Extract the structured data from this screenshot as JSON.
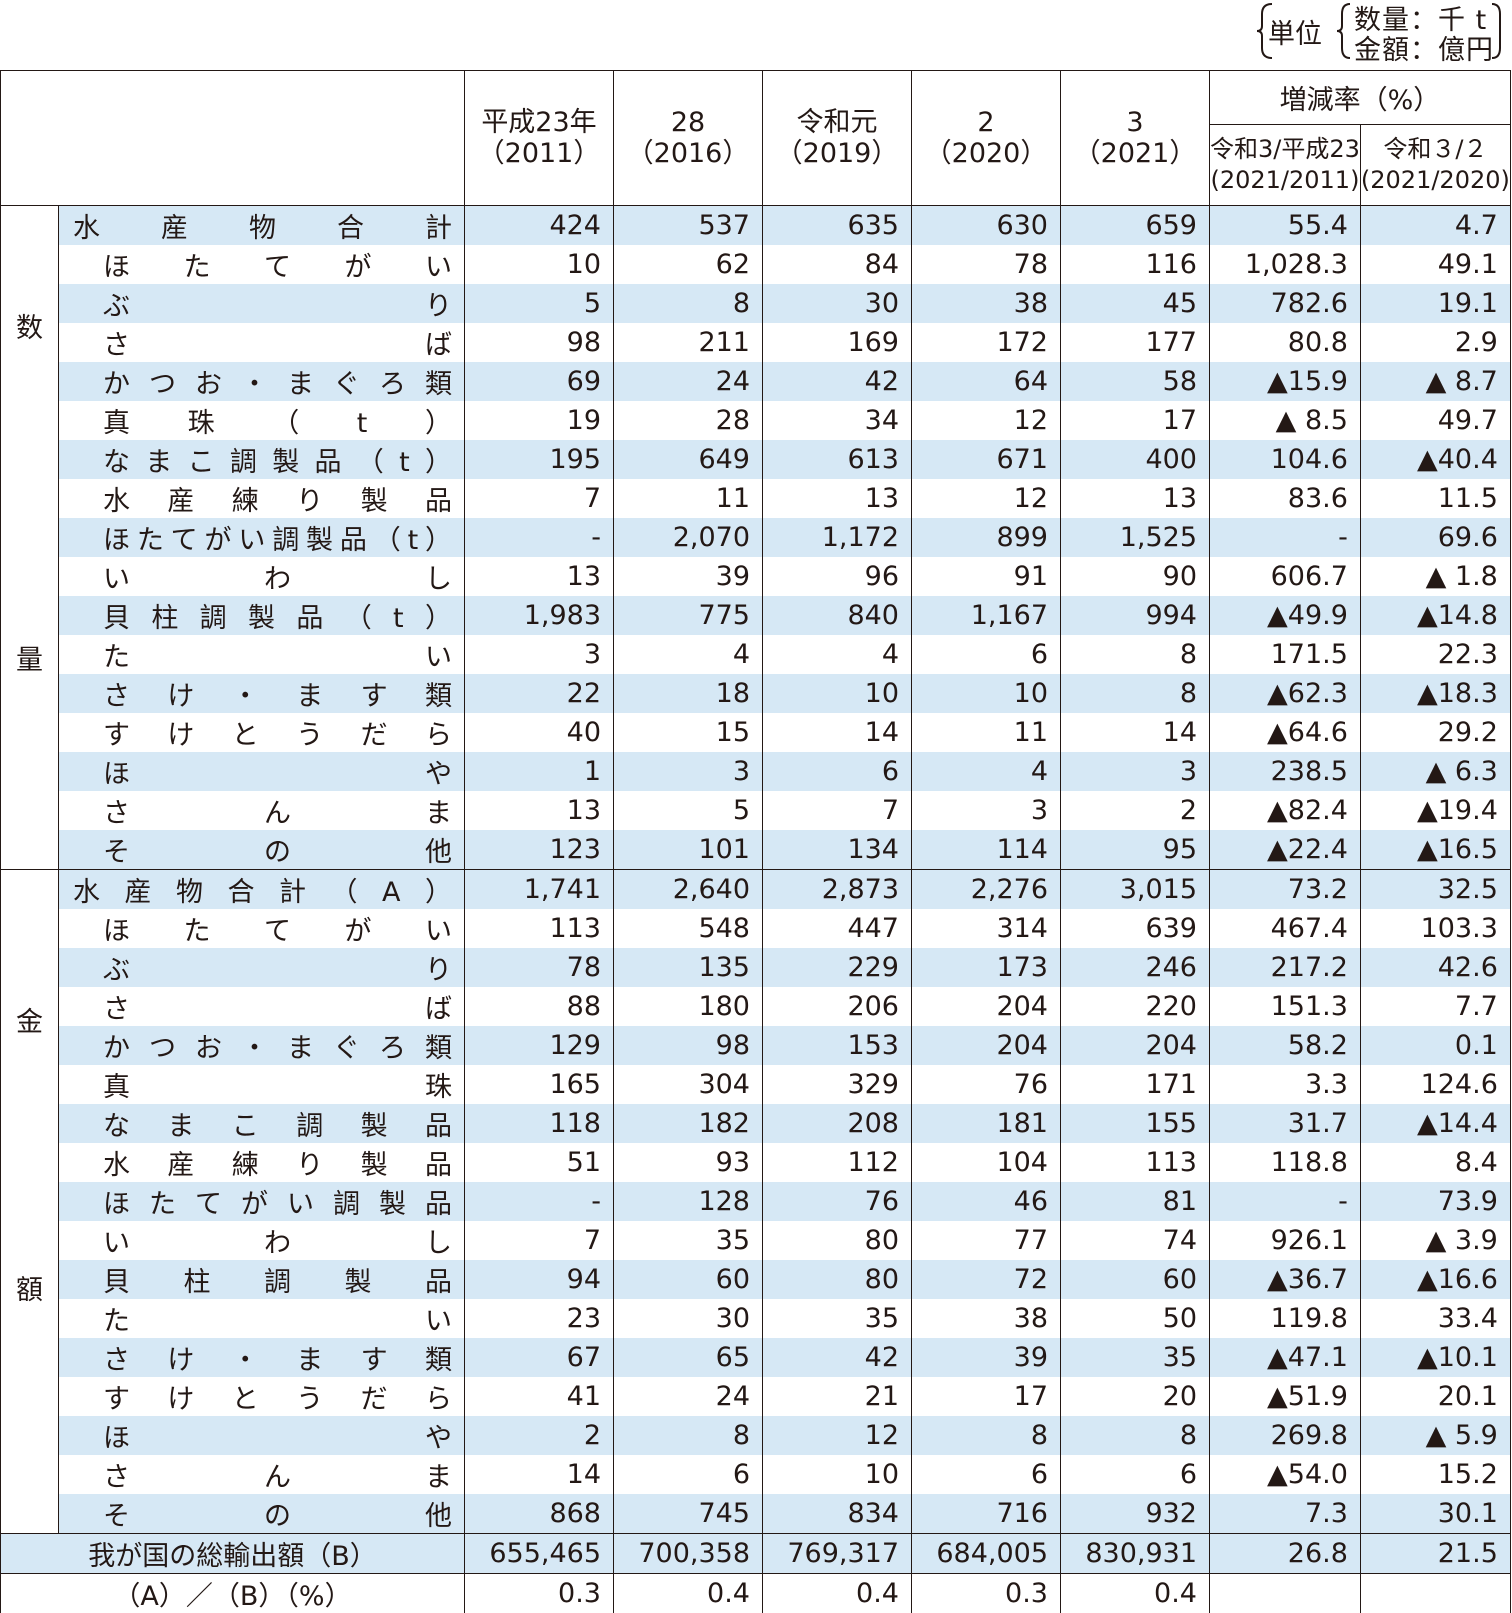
{
  "unit": {
    "label": "単位",
    "line1": "数量：千 t",
    "line2": "金額：億円"
  },
  "header": {
    "years": [
      {
        "top": "平成23年",
        "bottom": "（2011）"
      },
      {
        "top": "28",
        "bottom": "（2016）"
      },
      {
        "top": "令和元",
        "bottom": "（2019）"
      },
      {
        "top": "2",
        "bottom": "（2020）"
      },
      {
        "top": "3",
        "bottom": "（2021）"
      }
    ],
    "rate_title": "増減率（%）",
    "rate_cols": [
      {
        "top": "令和3/平成23",
        "bottom": "(2021/2011)"
      },
      {
        "top": "令和３/２",
        "bottom": "(2021/2020)"
      }
    ]
  },
  "sections": {
    "quantity_label_top": "数",
    "quantity_label_bottom": "量",
    "value_label_top": "金",
    "value_label_bottom": "額"
  },
  "quantity_rows": [
    {
      "name": "水産物合計",
      "v": [
        "424",
        "537",
        "635",
        "630",
        "659",
        "55.4",
        "4.7"
      ]
    },
    {
      "name": "ほたてがい",
      "v": [
        "10",
        "62",
        "84",
        "78",
        "116",
        "1,028.3",
        "49.1"
      ]
    },
    {
      "name": "ぶり",
      "v": [
        "5",
        "8",
        "30",
        "38",
        "45",
        "782.6",
        "19.1"
      ]
    },
    {
      "name": "さば",
      "v": [
        "98",
        "211",
        "169",
        "172",
        "177",
        "80.8",
        "2.9"
      ]
    },
    {
      "name": "かつお・まぐろ類",
      "v": [
        "69",
        "24",
        "42",
        "64",
        "58",
        "▲15.9",
        "▲ 8.7"
      ]
    },
    {
      "name": "真珠（t）",
      "v": [
        "19",
        "28",
        "34",
        "12",
        "17",
        "▲ 8.5",
        "49.7"
      ]
    },
    {
      "name": "なまこ調製品（t）",
      "v": [
        "195",
        "649",
        "613",
        "671",
        "400",
        "104.6",
        "▲40.4"
      ]
    },
    {
      "name": "水産練り製品",
      "v": [
        "7",
        "11",
        "13",
        "12",
        "13",
        "83.6",
        "11.5"
      ]
    },
    {
      "name": "ほたてがい調製品（t）",
      "v": [
        "-",
        "2,070",
        "1,172",
        "899",
        "1,525",
        "-",
        "69.6"
      ]
    },
    {
      "name": "いわし",
      "v": [
        "13",
        "39",
        "96",
        "91",
        "90",
        "606.7",
        "▲ 1.8"
      ]
    },
    {
      "name": "貝柱調製品（t）",
      "v": [
        "1,983",
        "775",
        "840",
        "1,167",
        "994",
        "▲49.9",
        "▲14.8"
      ]
    },
    {
      "name": "たい",
      "v": [
        "3",
        "4",
        "4",
        "6",
        "8",
        "171.5",
        "22.3"
      ]
    },
    {
      "name": "さけ・ます類",
      "v": [
        "22",
        "18",
        "10",
        "10",
        "8",
        "▲62.3",
        "▲18.3"
      ]
    },
    {
      "name": "すけとうだら",
      "v": [
        "40",
        "15",
        "14",
        "11",
        "14",
        "▲64.6",
        "29.2"
      ]
    },
    {
      "name": "ほや",
      "v": [
        "1",
        "3",
        "6",
        "4",
        "3",
        "238.5",
        "▲ 6.3"
      ]
    },
    {
      "name": "さんま",
      "v": [
        "13",
        "5",
        "7",
        "3",
        "2",
        "▲82.4",
        "▲19.4"
      ]
    },
    {
      "name": "その他",
      "v": [
        "123",
        "101",
        "134",
        "114",
        "95",
        "▲22.4",
        "▲16.5"
      ]
    }
  ],
  "value_rows": [
    {
      "name": "水産物合計（A）",
      "v": [
        "1,741",
        "2,640",
        "2,873",
        "2,276",
        "3,015",
        "73.2",
        "32.5"
      ]
    },
    {
      "name": "ほたてがい",
      "v": [
        "113",
        "548",
        "447",
        "314",
        "639",
        "467.4",
        "103.3"
      ]
    },
    {
      "name": "ぶり",
      "v": [
        "78",
        "135",
        "229",
        "173",
        "246",
        "217.2",
        "42.6"
      ]
    },
    {
      "name": "さば",
      "v": [
        "88",
        "180",
        "206",
        "204",
        "220",
        "151.3",
        "7.7"
      ]
    },
    {
      "name": "かつお・まぐろ類",
      "v": [
        "129",
        "98",
        "153",
        "204",
        "204",
        "58.2",
        "0.1"
      ]
    },
    {
      "name": "真珠",
      "v": [
        "165",
        "304",
        "329",
        "76",
        "171",
        "3.3",
        "124.6"
      ]
    },
    {
      "name": "なまこ調製品",
      "v": [
        "118",
        "182",
        "208",
        "181",
        "155",
        "31.7",
        "▲14.4"
      ]
    },
    {
      "name": "水産練り製品",
      "v": [
        "51",
        "93",
        "112",
        "104",
        "113",
        "118.8",
        "8.4"
      ]
    },
    {
      "name": "ほたてがい調製品",
      "v": [
        "-",
        "128",
        "76",
        "46",
        "81",
        "-",
        "73.9"
      ]
    },
    {
      "name": "いわし",
      "v": [
        "7",
        "35",
        "80",
        "77",
        "74",
        "926.1",
        "▲ 3.9"
      ]
    },
    {
      "name": "貝柱調製品",
      "v": [
        "94",
        "60",
        "80",
        "72",
        "60",
        "▲36.7",
        "▲16.6"
      ]
    },
    {
      "name": "たい",
      "v": [
        "23",
        "30",
        "35",
        "38",
        "50",
        "119.8",
        "33.4"
      ]
    },
    {
      "name": "さけ・ます類",
      "v": [
        "67",
        "65",
        "42",
        "39",
        "35",
        "▲47.1",
        "▲10.1"
      ]
    },
    {
      "name": "すけとうだら",
      "v": [
        "41",
        "24",
        "21",
        "17",
        "20",
        "▲51.9",
        "20.1"
      ]
    },
    {
      "name": "ほや",
      "v": [
        "2",
        "8",
        "12",
        "8",
        "8",
        "269.8",
        "▲ 5.9"
      ]
    },
    {
      "name": "さんま",
      "v": [
        "14",
        "6",
        "10",
        "6",
        "6",
        "▲54.0",
        "15.2"
      ]
    },
    {
      "name": "その他",
      "v": [
        "868",
        "745",
        "834",
        "716",
        "932",
        "7.3",
        "30.1"
      ]
    }
  ],
  "footer_rows": [
    {
      "name": "我が国の総輸出額（B）",
      "v": [
        "655,465",
        "700,358",
        "769,317",
        "684,005",
        "830,931",
        "26.8",
        "21.5"
      ]
    },
    {
      "name": "（A）／（B）（%）",
      "v": [
        "0.3",
        "0.4",
        "0.4",
        "0.3",
        "0.4",
        "",
        ""
      ]
    }
  ],
  "colors": {
    "shade": "#d6e8f5",
    "text": "#231815"
  }
}
